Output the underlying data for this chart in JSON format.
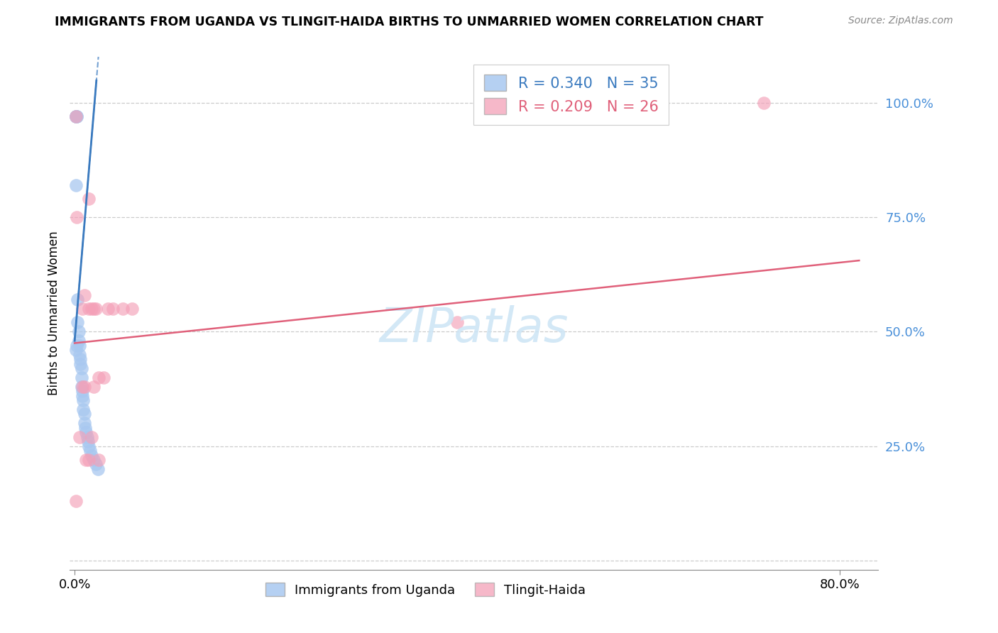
{
  "title": "IMMIGRANTS FROM UGANDA VS TLINGIT-HAIDA BIRTHS TO UNMARRIED WOMEN CORRELATION CHART",
  "source": "Source: ZipAtlas.com",
  "ylabel": "Births to Unmarried Women",
  "legend1_label": "Immigrants from Uganda",
  "legend2_label": "Tlingit-Haida",
  "r1": 0.34,
  "n1": 35,
  "r2": 0.209,
  "n2": 26,
  "blue_color": "#a8c8f0",
  "pink_color": "#f4a0b8",
  "blue_line_color": "#3a7abf",
  "pink_line_color": "#e0607a",
  "blue_x": [
    0.001,
    0.001,
    0.001,
    0.002,
    0.002,
    0.003,
    0.003,
    0.004,
    0.004,
    0.005,
    0.005,
    0.006,
    0.006,
    0.007,
    0.007,
    0.007,
    0.008,
    0.008,
    0.009,
    0.009,
    0.01,
    0.01,
    0.011,
    0.012,
    0.013,
    0.014,
    0.015,
    0.016,
    0.018,
    0.02,
    0.022,
    0.024,
    0.001,
    0.001,
    0.002
  ],
  "blue_y": [
    0.97,
    0.97,
    0.97,
    0.97,
    0.97,
    0.57,
    0.52,
    0.5,
    0.48,
    0.47,
    0.45,
    0.44,
    0.43,
    0.42,
    0.4,
    0.38,
    0.37,
    0.36,
    0.35,
    0.33,
    0.32,
    0.3,
    0.29,
    0.28,
    0.27,
    0.26,
    0.25,
    0.24,
    0.23,
    0.22,
    0.21,
    0.2,
    0.82,
    0.46,
    0.47
  ],
  "pink_x": [
    0.001,
    0.002,
    0.008,
    0.01,
    0.015,
    0.018,
    0.02,
    0.022,
    0.025,
    0.03,
    0.035,
    0.04,
    0.05,
    0.06,
    0.4,
    0.72,
    0.001,
    0.01,
    0.015,
    0.02,
    0.025,
    0.015,
    0.018,
    0.005,
    0.008,
    0.012
  ],
  "pink_y": [
    0.97,
    0.75,
    0.55,
    0.58,
    0.55,
    0.55,
    0.55,
    0.55,
    0.4,
    0.4,
    0.55,
    0.55,
    0.55,
    0.55,
    0.52,
    1.0,
    0.13,
    0.38,
    0.22,
    0.38,
    0.22,
    0.79,
    0.27,
    0.27,
    0.38,
    0.22
  ],
  "xlim_min": -0.005,
  "xlim_max": 0.84,
  "ylim_min": -0.02,
  "ylim_max": 1.1,
  "ytick_vals": [
    0.0,
    0.25,
    0.5,
    0.75,
    1.0
  ],
  "ytick_labels": [
    "",
    "25.0%",
    "50.0%",
    "75.0%",
    "100.0%"
  ],
  "xtick_vals": [
    0.0,
    0.8
  ],
  "xtick_labels": [
    "0.0%",
    "80.0%"
  ],
  "blue_intercept": 0.48,
  "blue_slope": 25.0,
  "pink_intercept": 0.475,
  "pink_slope": 0.22
}
